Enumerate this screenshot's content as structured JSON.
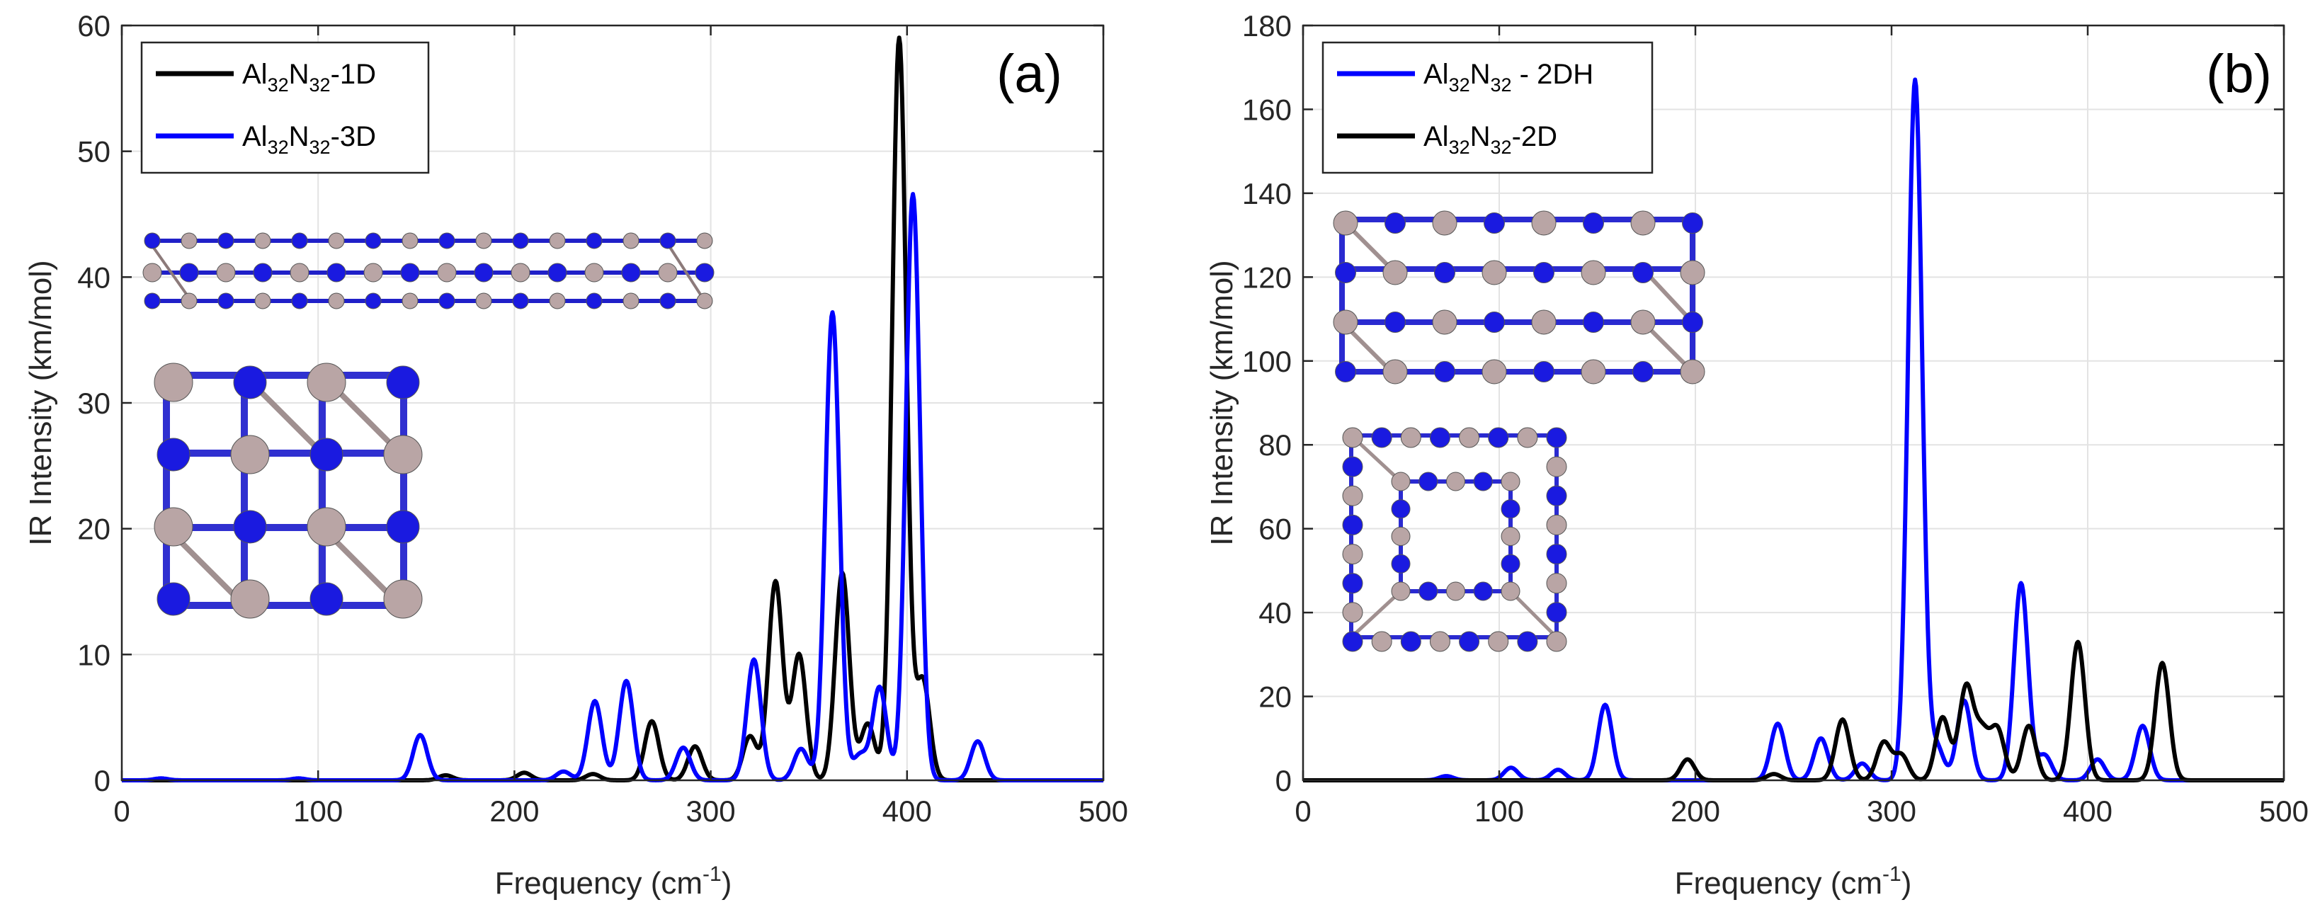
{
  "chart_data": [
    {
      "type": "line",
      "panel_label": "(a)",
      "xlabel": "Frequency (cm",
      "xlabel_sup": "-1",
      "xlabel_tail": ")",
      "ylabel": "IR Intensity (km/mol)",
      "xlim": [
        0,
        500
      ],
      "ylim": [
        0,
        60
      ],
      "xticks": [
        0,
        100,
        200,
        300,
        400,
        500
      ],
      "yticks": [
        0,
        10,
        20,
        30,
        40,
        50,
        60
      ],
      "xtick_labels": [
        "0",
        "100",
        "200",
        "300",
        "400",
        "500"
      ],
      "ytick_labels": [
        "0",
        "10",
        "20",
        "30",
        "40",
        "50",
        "60"
      ],
      "grid": true,
      "legend_position": "top-left",
      "series": [
        {
          "name": "Al32N32-1D",
          "legend_base": "Al",
          "legend_sub1": "32",
          "legend_mid": "N",
          "legend_sub2": "32",
          "legend_tail": "-1D",
          "color": "#000000",
          "peaks": [
            [
              165,
              0.4
            ],
            [
              205,
              0.6
            ],
            [
              240,
              0.5
            ],
            [
              270,
              4.7
            ],
            [
              292,
              2.7
            ],
            [
              320,
              3.5
            ],
            [
              333,
              15.8
            ],
            [
              345,
              10
            ],
            [
              367,
              16.5
            ],
            [
              380,
              4.5
            ],
            [
              396,
              59
            ],
            [
              408,
              8
            ]
          ]
        },
        {
          "name": "Al32N32-3D",
          "legend_base": "Al",
          "legend_sub1": "32",
          "legend_mid": "N",
          "legend_sub2": "32",
          "legend_tail": "-3D",
          "color": "#0000ff",
          "peaks": [
            [
              20,
              0.15
            ],
            [
              90,
              0.15
            ],
            [
              152,
              3.6
            ],
            [
              225,
              0.7
            ],
            [
              241,
              6.3
            ],
            [
              257,
              7.9
            ],
            [
              286,
              2.6
            ],
            [
              322,
              9.6
            ],
            [
              346,
              2.5
            ],
            [
              362,
              37.2
            ],
            [
              376,
              2
            ],
            [
              386,
              7.4
            ],
            [
              403,
              46.6
            ],
            [
              436,
              3.1
            ]
          ]
        }
      ]
    },
    {
      "type": "line",
      "panel_label": "(b)",
      "xlabel": "Frequency (cm",
      "xlabel_sup": "-1",
      "xlabel_tail": ")",
      "ylabel": "IR Intensity (km/mol)",
      "xlim": [
        0,
        500
      ],
      "ylim": [
        0,
        180
      ],
      "xticks": [
        0,
        100,
        200,
        300,
        400,
        500
      ],
      "yticks": [
        0,
        20,
        40,
        60,
        80,
        100,
        120,
        140,
        160,
        180
      ],
      "xtick_labels": [
        "0",
        "100",
        "200",
        "300",
        "400",
        "500"
      ],
      "ytick_labels": [
        "0",
        "20",
        "40",
        "60",
        "80",
        "100",
        "120",
        "140",
        "160",
        "180"
      ],
      "grid": true,
      "legend_position": "top-left",
      "series": [
        {
          "name": "Al32N32 - 2DH",
          "legend_base": "Al",
          "legend_sub1": "32",
          "legend_mid": "N",
          "legend_sub2": "32",
          "legend_tail": " - 2DH",
          "color": "#0000ff",
          "peaks": [
            [
              73,
              1
            ],
            [
              106,
              3
            ],
            [
              130,
              2.5
            ],
            [
              154,
              18
            ],
            [
              242,
              13.5
            ],
            [
              264,
              10
            ],
            [
              285,
              4
            ],
            [
              312,
              167
            ],
            [
              323,
              8
            ],
            [
              337,
              19
            ],
            [
              366,
              47
            ],
            [
              378,
              6
            ],
            [
              405,
              5
            ],
            [
              428,
              13
            ]
          ]
        },
        {
          "name": "Al32N32-2D",
          "legend_base": "Al",
          "legend_sub1": "32",
          "legend_mid": "N",
          "legend_sub2": "32",
          "legend_tail": "-2D",
          "color": "#000000",
          "peaks": [
            [
              196,
              5
            ],
            [
              240,
              1.5
            ],
            [
              275,
              14.5
            ],
            [
              296,
              9
            ],
            [
              305,
              6
            ],
            [
              326,
              15
            ],
            [
              338,
              22
            ],
            [
              346,
              11
            ],
            [
              354,
              12
            ],
            [
              370,
              13
            ],
            [
              395,
              33
            ],
            [
              438,
              28
            ]
          ]
        }
      ]
    }
  ]
}
